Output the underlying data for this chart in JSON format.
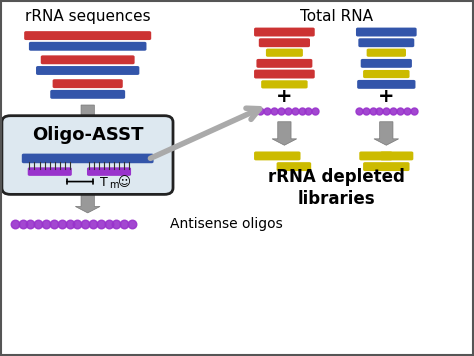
{
  "bg_color": "#ffffff",
  "border_color": "#555555",
  "title_rrna": "rRNA sequences",
  "title_total": "Total RNA",
  "title_depleted": "rRNA depleted\nlibraries",
  "title_antisense": "Antisense oligos",
  "title_oligo": "Oligo-ASST",
  "smile": "☺",
  "red_color": "#cc3333",
  "blue_color": "#3355aa",
  "purple_color": "#9933cc",
  "yellow_color": "#ccbb00",
  "box_fill": "#dde8f0",
  "box_edge": "#222222"
}
